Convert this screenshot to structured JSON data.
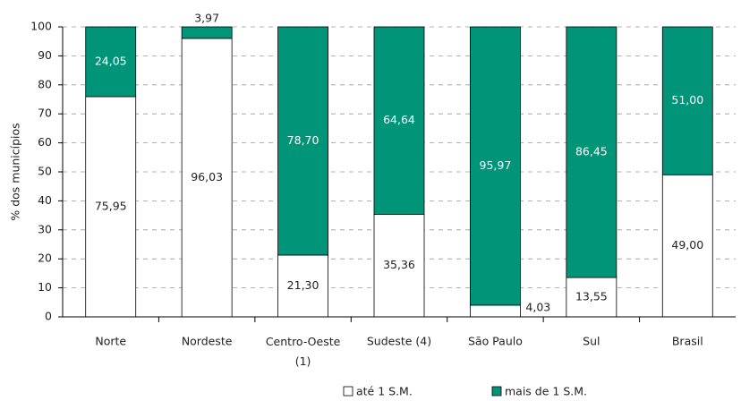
{
  "chart_data": {
    "type": "stacked_bar",
    "ylabel": "% dos municípios",
    "categories": [
      "Norte",
      "Nordeste",
      "Centro-Oeste (1)",
      "Sudeste (4)",
      "São Paulo",
      "Sul",
      "Brasil"
    ],
    "series": [
      {
        "name": "até 1 S.M.",
        "color": "#ffffff",
        "values": [
          75.95,
          96.03,
          21.3,
          35.36,
          4.03,
          13.55,
          49.0
        ],
        "value_labels": [
          "75,95",
          "96,03",
          "21,30",
          "35,36",
          "4,03",
          "13,55",
          "49,00"
        ]
      },
      {
        "name": "mais de 1 S.M.",
        "color": "#009479",
        "values": [
          24.05,
          3.97,
          78.7,
          64.64,
          95.97,
          86.45,
          51.0
        ],
        "value_labels": [
          "24,05",
          "3,97",
          "78,70",
          "64,64",
          "95,97",
          "86,45",
          "51,00"
        ]
      }
    ],
    "ylim": [
      0,
      100
    ],
    "yticks": [
      0,
      10,
      20,
      30,
      40,
      50,
      60,
      70,
      80,
      90,
      100
    ],
    "grid": true
  }
}
